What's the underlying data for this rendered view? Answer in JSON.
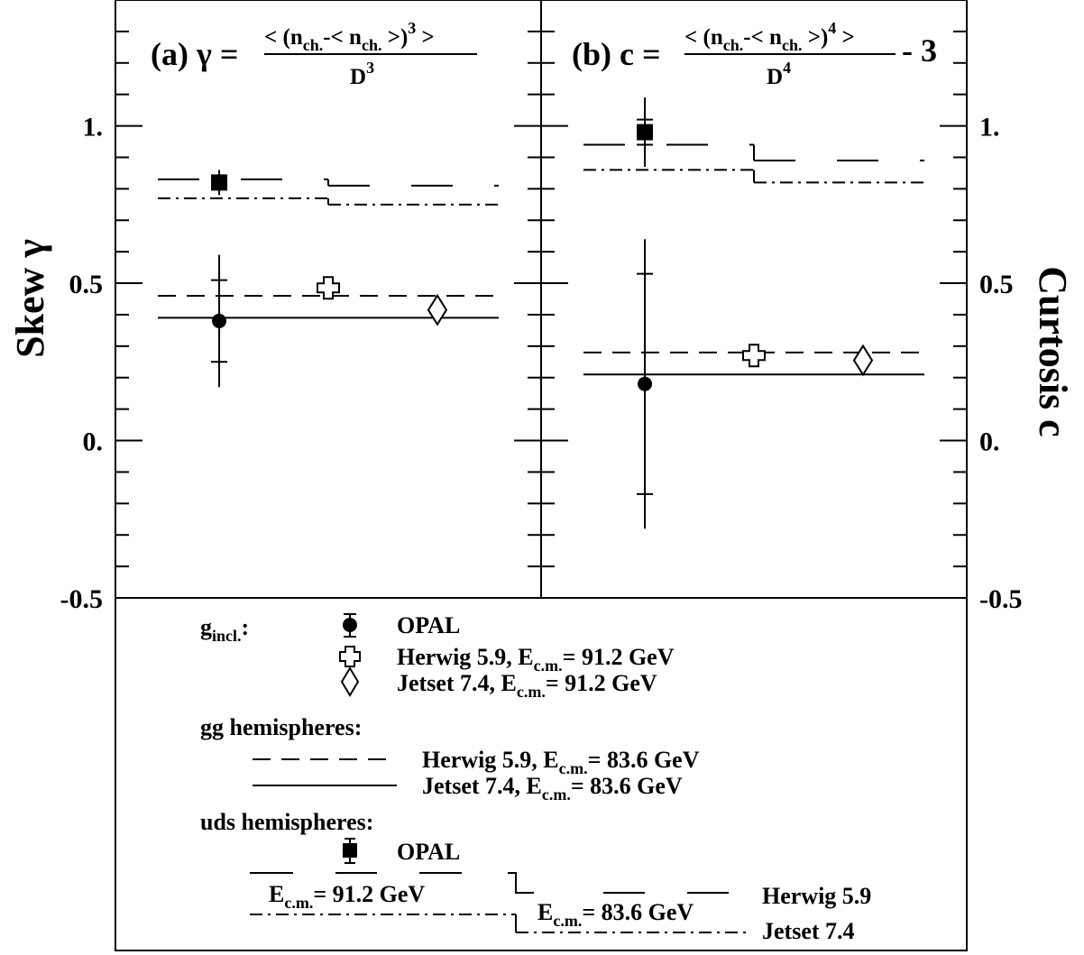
{
  "chart_data": [
    {
      "type": "scatter",
      "panel_label": "(a)",
      "formula": {
        "lhs": "γ =",
        "numerator_parts": [
          "< (n",
          "ch.",
          "-< n",
          "ch.",
          " >)",
          "3",
          " >"
        ],
        "denominator_parts": [
          "D",
          "3"
        ],
        "suffix": ""
      },
      "ylabel": "Skew γ",
      "ylim": [
        -0.5,
        1.4
      ],
      "yticks": [
        -0.5,
        0.0,
        0.5,
        1.0
      ],
      "ytick_labels": [
        "-0.5",
        "0.",
        "0.5",
        "1."
      ],
      "points": [
        {
          "name": "OPAL g_incl.",
          "marker": "filled-circle",
          "x": 0.18,
          "y": 0.38,
          "err_stat": 0.13,
          "err_total": 0.21
        },
        {
          "name": "OPAL uds",
          "marker": "filled-square",
          "x": 0.18,
          "y": 0.82,
          "err_stat": 0.02,
          "err_total": 0.04
        },
        {
          "name": "Herwig 5.9 g_incl.",
          "marker": "open-cross",
          "x": 0.5,
          "y": 0.485
        },
        {
          "name": "Jetset 7.4 g_incl.",
          "marker": "open-diamond",
          "x": 0.82,
          "y": 0.415
        }
      ],
      "lines": [
        {
          "name": "Herwig 5.9 gg",
          "style": "dashed",
          "segments": [
            [
              0.0,
              1.0,
              0.46
            ]
          ]
        },
        {
          "name": "Jetset 7.4 gg",
          "style": "solid",
          "segments": [
            [
              0.0,
              1.0,
              0.39
            ]
          ]
        },
        {
          "name": "Herwig 5.9 uds",
          "style": "long-dash",
          "segments": [
            [
              0.0,
              0.5,
              0.83
            ],
            [
              0.5,
              1.0,
              0.81
            ]
          ]
        },
        {
          "name": "Jetset 7.4 uds",
          "style": "dash-dot",
          "segments": [
            [
              0.0,
              0.5,
              0.77
            ],
            [
              0.5,
              1.0,
              0.75
            ]
          ]
        }
      ]
    },
    {
      "type": "scatter",
      "panel_label": "(b)",
      "formula": {
        "lhs": "c =",
        "numerator_parts": [
          "< (n",
          "ch.",
          "-< n",
          "ch.",
          " >)",
          "4",
          " >"
        ],
        "denominator_parts": [
          "D",
          "4"
        ],
        "suffix": "- 3"
      },
      "ylabel": "Curtosis c",
      "ylim": [
        -0.5,
        1.4
      ],
      "yticks": [
        -0.5,
        0.0,
        0.5,
        1.0
      ],
      "ytick_labels": [
        "-0.5",
        "0.",
        "0.5",
        "1."
      ],
      "points": [
        {
          "name": "OPAL g_incl.",
          "marker": "filled-circle",
          "x": 0.18,
          "y": 0.18,
          "err_stat": 0.35,
          "err_total": 0.46
        },
        {
          "name": "OPAL uds",
          "marker": "filled-square",
          "x": 0.18,
          "y": 0.98,
          "err_stat": 0.04,
          "err_total": 0.11
        },
        {
          "name": "Herwig 5.9 g_incl.",
          "marker": "open-cross",
          "x": 0.5,
          "y": 0.27
        },
        {
          "name": "Jetset 7.4 g_incl.",
          "marker": "open-diamond",
          "x": 0.82,
          "y": 0.255
        }
      ],
      "lines": [
        {
          "name": "Herwig 5.9 gg",
          "style": "dashed",
          "segments": [
            [
              0.0,
              1.0,
              0.28
            ]
          ]
        },
        {
          "name": "Jetset 7.4 gg",
          "style": "solid",
          "segments": [
            [
              0.0,
              1.0,
              0.21
            ]
          ]
        },
        {
          "name": "Herwig 5.9 uds",
          "style": "long-dash",
          "segments": [
            [
              0.0,
              0.5,
              0.94
            ],
            [
              0.5,
              1.0,
              0.89
            ]
          ]
        },
        {
          "name": "Jetset 7.4 uds",
          "style": "dash-dot",
          "segments": [
            [
              0.0,
              0.5,
              0.86
            ],
            [
              0.5,
              1.0,
              0.82
            ]
          ]
        }
      ]
    }
  ],
  "legend": {
    "g_incl_main": "g",
    "g_incl_sub": "incl.",
    "g_incl_colon": ":",
    "opal": "OPAL",
    "herwig_ecm_pre": "Herwig 5.9, E",
    "jetset_ecm_pre": "Jetset 7.4, E",
    "cm_sub": "c.m.",
    "eq_912": "= 91.2 GeV",
    "eq_836": "= 83.6 GeV",
    "gg_heading": "gg hemispheres:",
    "uds_heading": "uds hemispheres:",
    "uds_opal": "OPAL",
    "e_main": "E",
    "uds_e912": "= 91.2 GeV",
    "uds_e836": "= 83.6 GeV",
    "uds_herwig": "Herwig 5.9",
    "uds_jetset": "Jetset 7.4"
  }
}
